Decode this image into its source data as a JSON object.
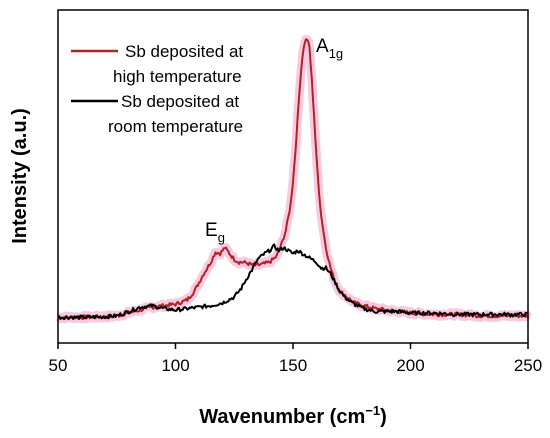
{
  "chart_data": {
    "type": "line",
    "title": "",
    "xlabel": "Wavenumber (cm",
    "xlabel_sup": "−1",
    "xlabel_close": ")",
    "ylabel": "Intensity (a.u.)",
    "xlim": [
      50,
      250
    ],
    "ylim": [
      0,
      100
    ],
    "xticks": [
      50,
      100,
      150,
      200,
      250
    ],
    "yticks_shown": false,
    "grid": false,
    "legend_position": "top-left",
    "annotations": [
      {
        "main": "E",
        "sub": "g",
        "x": 120,
        "y": 27
      },
      {
        "main": "A",
        "sub": "1g",
        "x": 157,
        "y": 99
      }
    ],
    "series": [
      {
        "name_line1": "Sb deposited at",
        "name_line2": "high temperature",
        "color": "#b22222",
        "shadow_color": "#f4b8d8",
        "x": [
          50,
          60,
          70,
          75,
          80,
          85,
          90,
          95,
          100,
          105,
          108,
          110,
          112,
          115,
          117,
          119,
          121,
          123,
          125,
          127,
          129,
          131,
          133,
          135,
          138,
          140,
          143,
          145,
          147,
          149,
          150,
          151,
          152,
          153,
          154,
          155,
          156,
          157,
          158,
          159,
          160,
          161,
          162,
          164,
          166,
          168,
          170,
          173,
          176,
          180,
          185,
          190,
          195,
          200,
          210,
          220,
          230,
          240,
          250
        ],
        "y": [
          3,
          3,
          3.2,
          3.5,
          4.5,
          5.5,
          6.5,
          7,
          7.5,
          9,
          12,
          15,
          18,
          22,
          25.5,
          25,
          27,
          25,
          23,
          22,
          22,
          21.5,
          21,
          21,
          21.5,
          22,
          24,
          28,
          33,
          42,
          50,
          60,
          72,
          84,
          93,
          98,
          99,
          96,
          85,
          72,
          58,
          47,
          38,
          27,
          20,
          15,
          12,
          10,
          8,
          7,
          6,
          5.5,
          5,
          4.5,
          4,
          4,
          3.5,
          3.5,
          3.5
        ]
      },
      {
        "name_line1": "Sb deposited at",
        "name_line2": "room temperature",
        "color": "#000000",
        "x": [
          50,
          60,
          70,
          75,
          80,
          85,
          90,
          95,
          100,
          105,
          110,
          115,
          120,
          125,
          128,
          130,
          133,
          135,
          138,
          140,
          142,
          144,
          146,
          148,
          150,
          152,
          154,
          156,
          158,
          160,
          162,
          164,
          166,
          168,
          170,
          172,
          175,
          180,
          185,
          190,
          195,
          200,
          210,
          220,
          230,
          240,
          250
        ],
        "y": [
          3,
          3,
          3.2,
          3.5,
          5,
          6.5,
          7,
          6,
          5.5,
          6,
          6.5,
          7,
          8,
          10,
          13,
          16,
          20,
          23,
          25,
          26,
          27.5,
          26,
          27,
          26,
          25,
          26,
          25,
          24,
          23,
          22,
          20,
          20,
          18,
          15,
          12,
          10,
          8,
          6,
          5,
          5,
          5,
          4.5,
          4.5,
          4,
          4,
          4,
          4
        ]
      }
    ]
  }
}
